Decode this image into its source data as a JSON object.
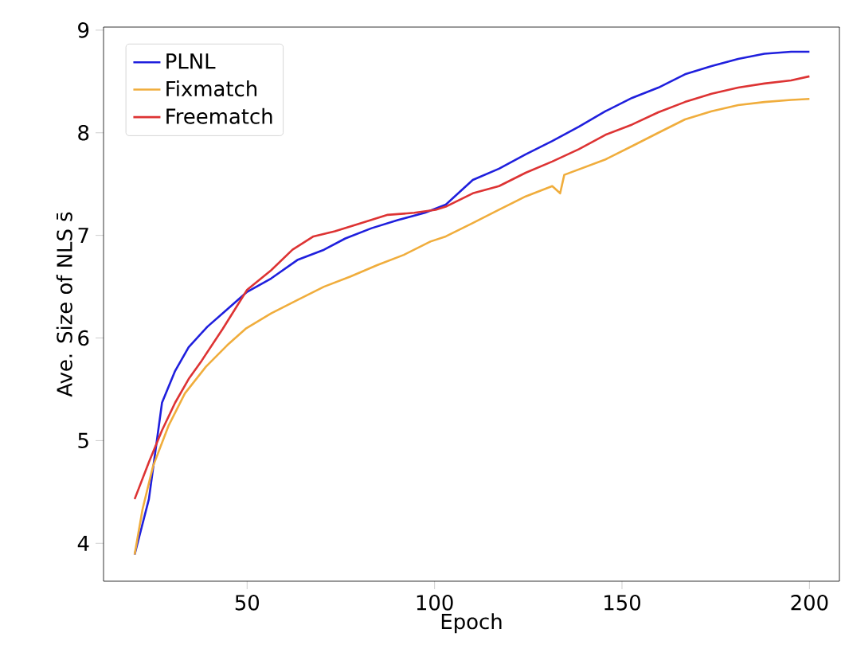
{
  "chart_data": {
    "type": "line",
    "xlabel": "Epoch",
    "ylabel": "Ave. Size of NLS s̄",
    "xlim": [
      11.7,
      208
    ],
    "ylim": [
      3.63,
      9.03
    ],
    "xticks": [
      50,
      100,
      150,
      200
    ],
    "yticks": [
      4,
      5,
      6,
      7,
      8,
      9
    ],
    "grid": false,
    "legend": "top left",
    "marker": "none",
    "line_style": "solid",
    "series": [
      {
        "name": "PLNL",
        "color": "#1f1fdd",
        "x": [
          20,
          23.8,
          27.3,
          30.8,
          34.4,
          39.4,
          45,
          50,
          56.4,
          63.4,
          70.5,
          76.2,
          83.2,
          90.3,
          97.4,
          103,
          110.2,
          117.2,
          124.3,
          131.4,
          138.5,
          145.6,
          152.7,
          159.7,
          166.8,
          173.9,
          181,
          188,
          195.1,
          200
        ],
        "values": [
          3.89,
          4.43,
          5.37,
          5.68,
          5.91,
          6.11,
          6.29,
          6.45,
          6.58,
          6.76,
          6.86,
          6.97,
          7.07,
          7.15,
          7.22,
          7.3,
          7.54,
          7.65,
          7.79,
          7.92,
          8.06,
          8.21,
          8.34,
          8.44,
          8.57,
          8.65,
          8.72,
          8.77,
          8.79,
          8.79
        ]
      },
      {
        "name": "Fixmatch",
        "color": "#f0ad3c",
        "x": [
          20,
          22.1,
          24.9,
          29.1,
          33.4,
          39,
          44.7,
          49.6,
          56.4,
          63.4,
          70.5,
          77.6,
          84.7,
          91.8,
          98.9,
          103,
          110.2,
          117.2,
          124.3,
          131.4,
          133.5,
          134.6,
          145.6,
          152.7,
          159.7,
          166.8,
          173.9,
          181,
          188,
          195.1,
          200
        ],
        "values": [
          3.89,
          4.33,
          4.75,
          5.15,
          5.46,
          5.72,
          5.93,
          6.09,
          6.24,
          6.37,
          6.5,
          6.6,
          6.71,
          6.81,
          6.94,
          6.99,
          7.12,
          7.25,
          7.38,
          7.48,
          7.41,
          7.59,
          7.74,
          7.87,
          8,
          8.13,
          8.21,
          8.27,
          8.3,
          8.32,
          8.33
        ]
      },
      {
        "name": "Freematch",
        "color": "#dd3333",
        "x": [
          20,
          23.8,
          27.3,
          30.8,
          34.4,
          37.9,
          43.5,
          50,
          56.4,
          62.1,
          67.7,
          73.4,
          80.4,
          87.5,
          94.6,
          100.3,
          103,
          110.2,
          117.2,
          124.3,
          131.4,
          138.5,
          145.6,
          152.7,
          159.7,
          166.8,
          173.9,
          181,
          188,
          195.1,
          200
        ],
        "values": [
          4.43,
          4.79,
          5.1,
          5.37,
          5.6,
          5.78,
          6.09,
          6.47,
          6.66,
          6.86,
          6.99,
          7.04,
          7.12,
          7.2,
          7.22,
          7.25,
          7.28,
          7.41,
          7.48,
          7.61,
          7.72,
          7.84,
          7.98,
          8.08,
          8.2,
          8.3,
          8.38,
          8.44,
          8.48,
          8.51,
          8.55
        ]
      }
    ]
  }
}
